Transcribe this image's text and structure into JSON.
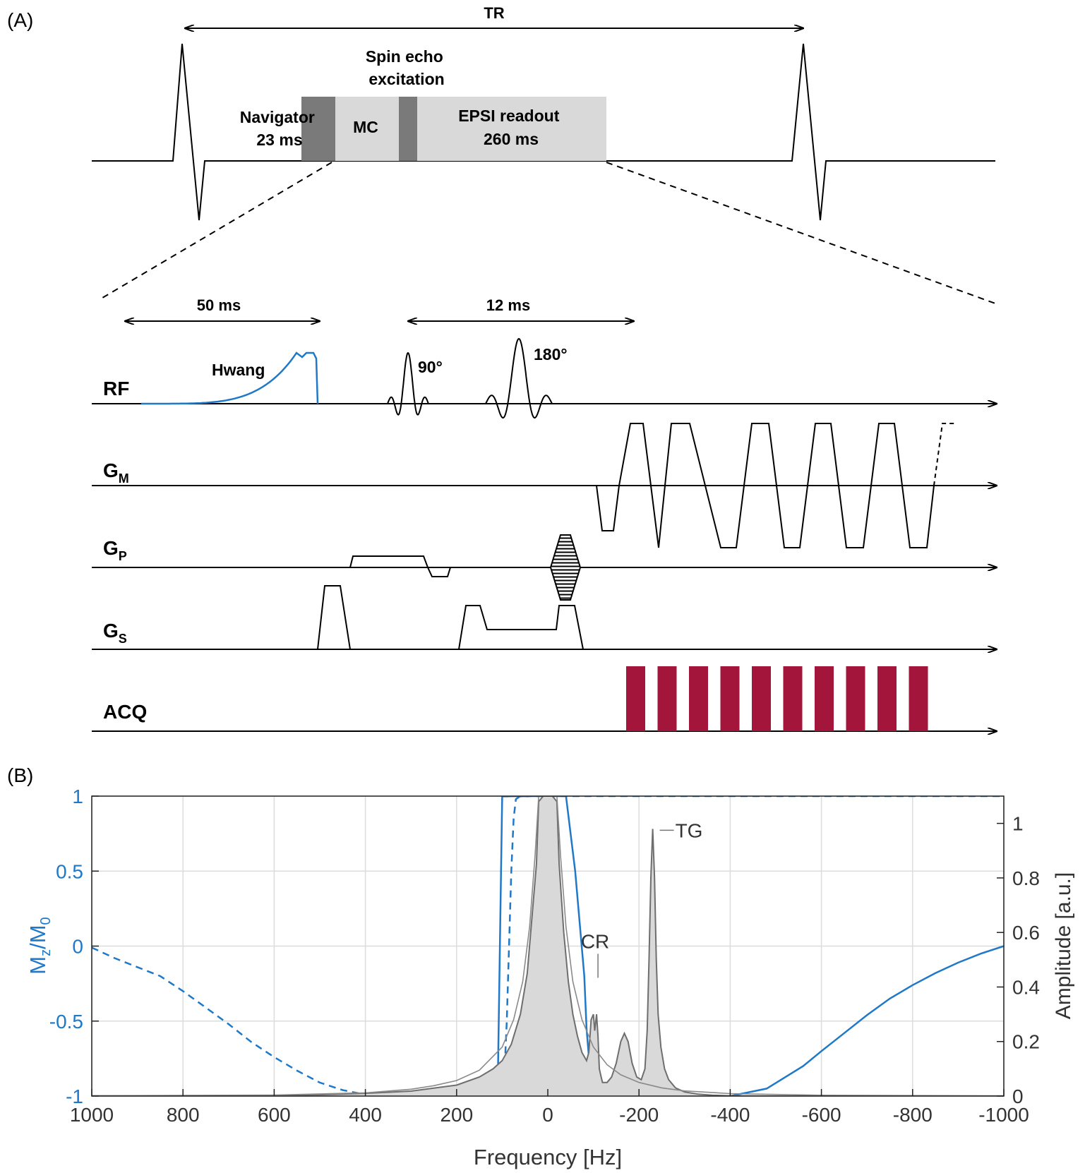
{
  "panel_a": {
    "label": "(A)",
    "tr_label": "TR",
    "blocks": {
      "navigator": [
        "Navigator",
        "23 ms"
      ],
      "mc": "MC",
      "spin_echo": [
        "Spin echo",
        "excitation"
      ],
      "epsi": [
        "EPSI readout",
        "260 ms"
      ]
    },
    "timing": {
      "span1": "50 ms",
      "span2": "12 ms"
    },
    "rf": {
      "hwang": "Hwang",
      "p90": "90°",
      "p180": "180°"
    },
    "rows": [
      {
        "main": "RF",
        "sub": ""
      },
      {
        "main": "G",
        "sub": "M"
      },
      {
        "main": "G",
        "sub": "P"
      },
      {
        "main": "G",
        "sub": "S"
      },
      {
        "main": "ACQ",
        "sub": ""
      }
    ],
    "acq_blocks": 10,
    "colors": {
      "navigator_block": "#7a7a7a",
      "mc_block": "#d9d9d9",
      "hwang_pulse": "#1f78c8",
      "acq": "#a3153a"
    }
  },
  "panel_b": {
    "label": "(B)",
    "chart_data": {
      "type": "line",
      "xlabel": "Frequency [Hz]",
      "ylabel_left": {
        "main": "M",
        "sub1": "z",
        "mid": "/M",
        "sub2": "0"
      },
      "ylabel_right": "Amplitude [a.u.]",
      "xlim": [
        1000,
        -1000
      ],
      "ylim_left": [
        -1,
        1
      ],
      "ylim_right": [
        0,
        1.1
      ],
      "xticks": [
        1000,
        800,
        600,
        400,
        200,
        0,
        -200,
        -400,
        -600,
        -800,
        -1000
      ],
      "xtick_labels": [
        "1000",
        "800",
        "600",
        "400",
        "200",
        "0",
        "-200",
        "-400",
        "-600",
        "-800",
        "-1000"
      ],
      "yticks_left": [
        1,
        0.5,
        0,
        -0.5,
        -1
      ],
      "yticks_left_labels": [
        "1",
        "0.5",
        "0",
        "-0.5",
        "-1"
      ],
      "yticks_right": [
        1,
        0.8,
        0.6,
        0.4,
        0.2,
        0
      ],
      "yticks_right_labels": [
        "1",
        "0.8",
        "0.6",
        "0.4",
        "0.2",
        "0"
      ],
      "grid": true,
      "annotations": [
        {
          "text": "TG",
          "x": -230,
          "amplitude": 0.98
        },
        {
          "text": "CR",
          "x": -110,
          "amplitude": 0.47
        }
      ],
      "series": [
        {
          "axis": "left",
          "style": "solid",
          "color": "#1f78c8",
          "x": [
            1000,
            110,
            100,
            90,
            80,
            70,
            60,
            50,
            45,
            40,
            30,
            -40,
            -60,
            -80,
            -85,
            -95,
            -105,
            -115,
            -200,
            -300,
            -400,
            -480,
            -560,
            -600,
            -650,
            -700,
            -750,
            -800,
            -850,
            -900,
            -950,
            -1000
          ],
          "y": [
            -1,
            -1,
            0.999,
            0.998,
            0.9995,
            0.9995,
            0.998,
            1.0,
            0.998,
            1.0,
            1.0,
            1.0,
            0.5,
            -0.2,
            -0.55,
            -0.92,
            -1,
            -1,
            -1,
            -1,
            -1,
            -0.95,
            -0.8,
            -0.7,
            -0.58,
            -0.46,
            -0.35,
            -0.26,
            -0.18,
            -0.11,
            -0.05,
            0.0
          ]
        },
        {
          "axis": "left",
          "style": "dashed",
          "color": "#1f78c8",
          "x": [
            1000,
            950,
            900,
            850,
            800,
            750,
            700,
            650,
            600,
            550,
            500,
            450,
            400,
            350,
            300,
            250,
            200,
            150,
            110,
            100,
            95,
            90,
            85,
            80,
            75,
            70,
            60,
            0,
            -1000
          ],
          "y": [
            -0.01,
            -0.08,
            -0.14,
            -0.2,
            -0.3,
            -0.41,
            -0.52,
            -0.64,
            -0.74,
            -0.83,
            -0.91,
            -0.96,
            -0.99,
            -1,
            -1,
            -1,
            -1,
            -1,
            -1,
            -0.99,
            -0.85,
            -0.5,
            0.0,
            0.5,
            0.85,
            0.98,
            1.0,
            1.0,
            1.0
          ]
        },
        {
          "axis": "right",
          "style": "area",
          "color": "#6e6e6e",
          "fill": "#d9d9d9",
          "x": [
            1000,
            800,
            600,
            500,
            400,
            300,
            200,
            150,
            120,
            100,
            80,
            60,
            45,
            35,
            25,
            20,
            10,
            0,
            -10,
            -20,
            -25,
            -35,
            -45,
            -55,
            -65,
            -75,
            -85,
            -90,
            -95,
            -100,
            -103,
            -107,
            -110,
            -113,
            -117,
            -120,
            -130,
            -140,
            -150,
            -160,
            -168,
            -176,
            -185,
            -195,
            -205,
            -213,
            -218,
            -222,
            -226,
            -230,
            -234,
            -238,
            -242,
            -248,
            -256,
            -265,
            -280,
            -300,
            -330,
            -360,
            -400,
            -600,
            -1000
          ],
          "y": [
            0,
            0,
            0.002,
            0.005,
            0.01,
            0.018,
            0.04,
            0.07,
            0.1,
            0.13,
            0.19,
            0.3,
            0.45,
            0.65,
            0.85,
            1.08,
            1.1,
            1.1,
            1.1,
            1.08,
            0.85,
            0.6,
            0.42,
            0.3,
            0.22,
            0.16,
            0.13,
            0.16,
            0.28,
            0.3,
            0.24,
            0.3,
            0.22,
            0.1,
            0.07,
            0.05,
            0.05,
            0.07,
            0.12,
            0.2,
            0.23,
            0.2,
            0.12,
            0.07,
            0.06,
            0.1,
            0.24,
            0.5,
            0.8,
            0.98,
            0.8,
            0.5,
            0.3,
            0.18,
            0.1,
            0.06,
            0.03,
            0.015,
            0.007,
            0.003,
            0.001,
            0,
            0
          ]
        },
        {
          "axis": "right",
          "style": "line",
          "color": "#8a8a8a",
          "x": [
            1000,
            600,
            400,
            300,
            250,
            200,
            150,
            100,
            75,
            55,
            40,
            28,
            20,
            10,
            0,
            -10,
            -20,
            -28,
            -40,
            -55,
            -75,
            -100,
            -130,
            -160,
            -200,
            -250,
            -300,
            -400,
            -600,
            -1000
          ],
          "y": [
            0.001,
            0.004,
            0.012,
            0.025,
            0.038,
            0.057,
            0.095,
            0.18,
            0.28,
            0.42,
            0.62,
            0.88,
            1.1,
            1.1,
            1.1,
            1.1,
            1.1,
            0.88,
            0.62,
            0.42,
            0.28,
            0.18,
            0.115,
            0.078,
            0.05,
            0.03,
            0.019,
            0.009,
            0.003,
            0.001
          ]
        }
      ]
    }
  }
}
